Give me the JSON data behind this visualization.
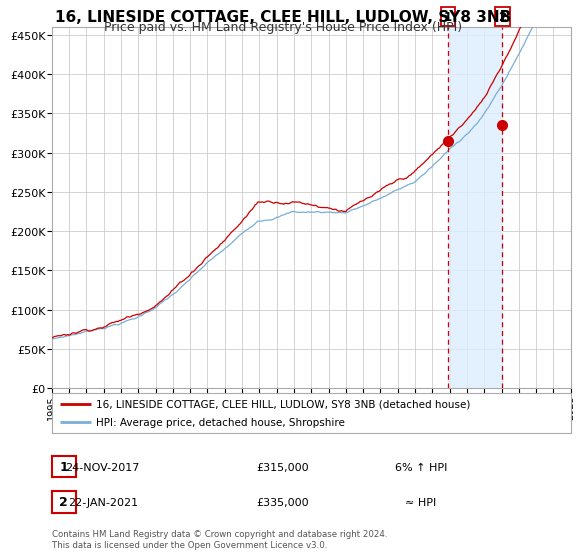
{
  "title": "16, LINESIDE COTTAGE, CLEE HILL, LUDLOW, SY8 3NB",
  "subtitle": "Price paid vs. HM Land Registry's House Price Index (HPI)",
  "ylim": [
    0,
    460000
  ],
  "xlim_start": 1995,
  "xlim_end": 2025,
  "yticks": [
    0,
    50000,
    100000,
    150000,
    200000,
    250000,
    300000,
    350000,
    400000,
    450000
  ],
  "ytick_labels": [
    "£0",
    "£50K",
    "£100K",
    "£150K",
    "£200K",
    "£250K",
    "£300K",
    "£350K",
    "£400K",
    "£450K"
  ],
  "xticks": [
    1995,
    1996,
    1997,
    1998,
    1999,
    2000,
    2001,
    2002,
    2003,
    2004,
    2005,
    2006,
    2007,
    2008,
    2009,
    2010,
    2011,
    2012,
    2013,
    2014,
    2015,
    2016,
    2017,
    2018,
    2019,
    2020,
    2021,
    2022,
    2023,
    2024,
    2025
  ],
  "red_line_color": "#cc0000",
  "blue_line_color": "#7aaed6",
  "background_color": "#ffffff",
  "grid_color": "#cccccc",
  "marker1_x": 2017.9,
  "marker1_y": 315000,
  "marker2_x": 2021.05,
  "marker2_y": 335000,
  "vline1_x": 2017.9,
  "vline2_x": 2021.05,
  "shade_color": "#ddeeff",
  "legend1_label": "16, LINESIDE COTTAGE, CLEE HILL, LUDLOW, SY8 3NB (detached house)",
  "legend2_label": "HPI: Average price, detached house, Shropshire",
  "annotation1_num": "1",
  "annotation1_date": "24-NOV-2017",
  "annotation1_price": "£315,000",
  "annotation1_hpi": "6% ↑ HPI",
  "annotation2_num": "2",
  "annotation2_date": "22-JAN-2021",
  "annotation2_price": "£335,000",
  "annotation2_hpi": "≈ HPI",
  "footer": "Contains HM Land Registry data © Crown copyright and database right 2024.\nThis data is licensed under the Open Government Licence v3.0.",
  "title_fontsize": 11,
  "subtitle_fontsize": 9
}
